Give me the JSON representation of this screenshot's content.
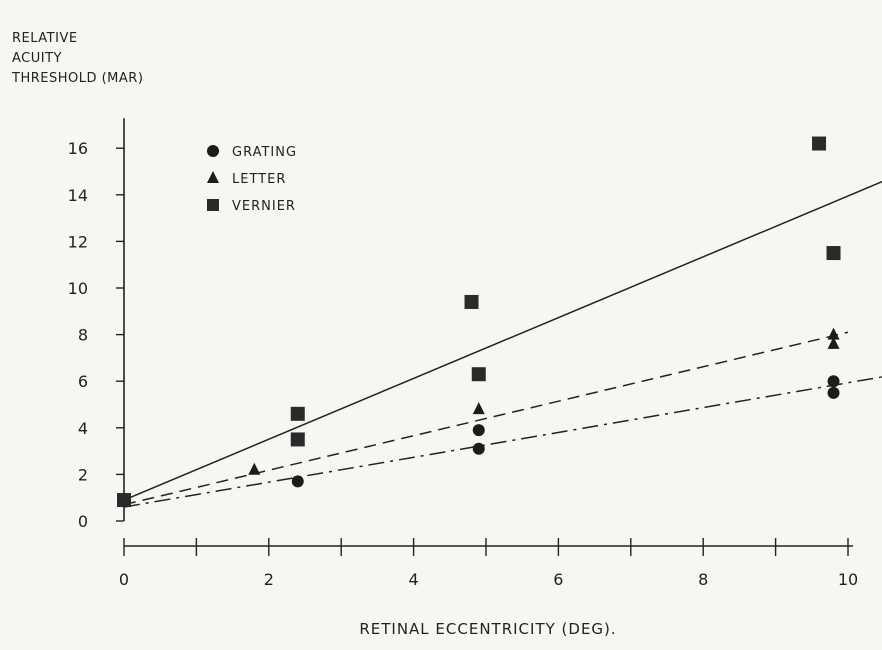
{
  "chart_data": {
    "type": "scatter",
    "ylabel": [
      "RELATIVE",
      "ACUITY",
      "THRESHOLD (MAR)"
    ],
    "xlabel": "RETINAL ECCENTRICITY (DEG).",
    "xlim": [
      0,
      10
    ],
    "ylim": [
      0,
      16
    ],
    "x_ticks": [
      0,
      2,
      4,
      6,
      8,
      10
    ],
    "y_ticks": [
      0,
      2,
      4,
      6,
      8,
      10,
      12,
      14,
      16
    ],
    "legend_position": "top-left",
    "series": [
      {
        "name": "GRATING",
        "marker": "circle",
        "line": "dash-dot",
        "points": [
          [
            0,
            0.9
          ],
          [
            2.4,
            1.7
          ],
          [
            4.9,
            3.1
          ],
          [
            4.9,
            3.9
          ],
          [
            9.8,
            6.0
          ],
          [
            9.8,
            5.5
          ]
        ],
        "fit": [
          [
            0,
            0.6
          ],
          [
            10.5,
            6.2
          ]
        ]
      },
      {
        "name": "LETTER",
        "marker": "triangle",
        "line": "dashed",
        "points": [
          [
            0,
            0.9
          ],
          [
            1.8,
            2.2
          ],
          [
            4.9,
            4.8
          ],
          [
            9.8,
            8.0
          ],
          [
            9.8,
            7.6
          ]
        ],
        "fit": [
          [
            0,
            0.7
          ],
          [
            10,
            8.1
          ]
        ]
      },
      {
        "name": "VERNIER",
        "marker": "square",
        "line": "solid",
        "points": [
          [
            0,
            0.9
          ],
          [
            2.4,
            4.6
          ],
          [
            2.4,
            3.5
          ],
          [
            4.8,
            9.4
          ],
          [
            4.9,
            6.3
          ],
          [
            9.6,
            16.2
          ],
          [
            9.8,
            11.5
          ]
        ],
        "fit": [
          [
            0,
            0.9
          ],
          [
            10.5,
            14.6
          ]
        ]
      }
    ]
  }
}
